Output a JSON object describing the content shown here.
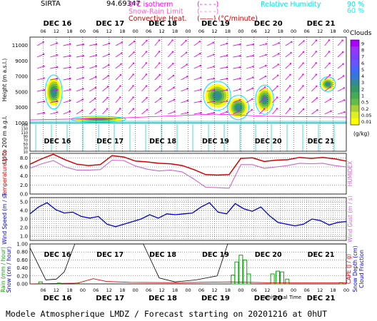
{
  "header": {
    "station": "SIRTA",
    "coords": "94.69347",
    "legend_items": [
      {
        "label": "0°C isotherm",
        "sample": "(- - - -)",
        "color": "#ff00ff"
      },
      {
        "label": "Snow-Rain Limit",
        "sample": "(- - - -)",
        "color": "#ff66cc"
      },
      {
        "label": "Convective Heat.",
        "sample": "(——) (°C/minute)",
        "color": "#d40000"
      }
    ],
    "humidity_label": "Relative Humidity",
    "humidity_levels": [
      "90 %",
      "60 %"
    ],
    "humidity_colors": [
      "#00e5e5",
      "#00ffff"
    ]
  },
  "footer": "Modele Atmospherique LMDZ / Forecast starting on 20201216 at 0hUT",
  "colors": {
    "temperature": "#d40000",
    "humidex": "#cc66cc",
    "wind": "#0000cc",
    "precip": "#00aa00",
    "snow": "#000000",
    "cape": "#dd0000",
    "arrows": "#ff00ff",
    "grid": "#000000"
  },
  "chart_data": [
    {
      "type": "heatmap",
      "name": "clouds",
      "x_day_labels": [
        "DEC 16",
        "DEC 17",
        "DEC 18",
        "DEC 19",
        "DEC 20",
        "DEC 21"
      ],
      "x_hour_labels": [
        "06",
        "12",
        "18",
        "00"
      ],
      "ylabel": "Height (m a.s.l.)",
      "ylabel_low": "Up to 200 m a.g.l.",
      "y_ticks_upper": [
        11000,
        9000,
        7000,
        5000,
        3000,
        1000
      ],
      "y_ticks_lower": [
        150,
        140,
        130,
        120,
        110,
        100,
        90,
        80,
        70,
        60,
        50,
        40,
        30,
        20,
        10
      ],
      "colorbar_title": "Clouds",
      "colorbar_unit": "(g/kg)",
      "colorbar_ticks": [
        "9",
        "8",
        "7",
        "6",
        "5",
        "4",
        "3",
        "2",
        "1",
        "0.5",
        "0.2",
        "0.05",
        "0.01"
      ],
      "colorbar_colors": [
        "#aa00ff",
        "#9933ff",
        "#7a3fff",
        "#6655ff",
        "#4466ff",
        "#3377dd",
        "#338899",
        "#339966",
        "#44aa55",
        "#66bb44",
        "#aad033",
        "#ddee22",
        "#ffff00"
      ],
      "cloud_blobs": [
        {
          "day": 0.45,
          "h": 5000,
          "w": 0.28,
          "hh": 3500
        },
        {
          "day": 1.3,
          "h": 1500,
          "w": 0.9,
          "hh": 600
        },
        {
          "day": 3.55,
          "h": 4500,
          "w": 0.45,
          "hh": 3000
        },
        {
          "day": 3.95,
          "h": 3000,
          "w": 0.35,
          "hh": 2500
        },
        {
          "day": 4.45,
          "h": 4000,
          "w": 0.3,
          "hh": 3000
        },
        {
          "day": 5.65,
          "h": 6000,
          "w": 0.25,
          "hh": 1500
        }
      ]
    },
    {
      "type": "line",
      "name": "temperature",
      "ylabel": "Temperature (°C)",
      "ylabel_right": "HUMIDEX",
      "y_ticks": [
        8.0,
        6.0,
        4.0,
        2.0,
        0.0
      ],
      "ylim": [
        0,
        9
      ],
      "temperature": [
        6.6,
        7.8,
        8.8,
        7.6,
        6.6,
        6.3,
        6.5,
        8.5,
        8.2,
        7.3,
        7.1,
        6.8,
        6.7,
        6.3,
        5.4,
        4.3,
        4.2,
        4.3,
        7.9,
        8.0,
        7.2,
        7.5,
        7.6,
        8.1,
        7.9,
        8.1,
        7.8,
        7.3
      ],
      "humidex": [
        5.7,
        6.7,
        7.4,
        6.0,
        5.3,
        5.3,
        5.4,
        7.5,
        7.4,
        6.2,
        5.5,
        5.1,
        5.3,
        4.9,
        3.3,
        1.5,
        1.4,
        1.3,
        6.5,
        6.5,
        5.7,
        6.0,
        6.3,
        6.8,
        6.7,
        6.8,
        6.3,
        6.0
      ]
    },
    {
      "type": "line",
      "name": "wind",
      "ylabel": "Wind Speed (m / s)",
      "ylabel_right": "Wind Gust (m / s)",
      "y_ticks": [
        5.0,
        4.0,
        3.0,
        2.0,
        1.0
      ],
      "ylim": [
        0.5,
        5.5
      ],
      "wind_speed": [
        3.6,
        4.4,
        4.9,
        4.1,
        3.7,
        3.8,
        3.3,
        3.1,
        3.3,
        2.4,
        2.1,
        2.4,
        2.7,
        3.0,
        3.5,
        3.1,
        3.6,
        3.5,
        3.6,
        3.7,
        4.4,
        4.9,
        3.8,
        3.6,
        4.8,
        4.2,
        3.9,
        4.4,
        3.4,
        2.6,
        2.4,
        2.2,
        2.4,
        3.0,
        2.8,
        2.3,
        2.6,
        2.7
      ],
      "wind_gust": [
        3.7,
        4.5,
        4.9,
        4.2,
        3.8,
        3.9,
        3.4,
        3.2,
        3.4,
        2.6,
        2.2,
        2.5,
        2.8,
        3.1,
        3.6,
        3.2,
        3.7,
        3.6,
        3.7,
        3.8,
        4.5,
        4.9,
        3.9,
        3.7,
        4.9,
        4.3,
        4.0,
        4.5,
        3.5,
        2.7,
        2.5,
        2.3,
        2.5,
        3.1,
        2.9,
        2.4,
        2.7,
        2.8
      ]
    },
    {
      "type": "bar",
      "name": "precipitation",
      "ylabel": "Rain (mm / hour)",
      "ylabel2": "Snow (cm / hour)",
      "ylabel_right": "CAPE (J / g)",
      "ylabel_right2": "Snow Depth (cm)",
      "ylabel_right3": "Cloud Fraction",
      "y_ticks": [
        1.0,
        0.8,
        0.6,
        0.4,
        0.2,
        0.0
      ],
      "ylim": [
        0,
        1
      ],
      "rain_bars": [
        {
          "t": 0.2,
          "v": 0.05
        },
        {
          "t": 0.55,
          "v": 0.02
        },
        {
          "t": 0.9,
          "v": 0.02
        },
        {
          "t": 3.85,
          "v": 0.22
        },
        {
          "t": 3.92,
          "v": 0.55
        },
        {
          "t": 4.0,
          "v": 0.72
        },
        {
          "t": 4.08,
          "v": 0.6
        },
        {
          "t": 4.15,
          "v": 0.25
        },
        {
          "t": 4.6,
          "v": 0.25
        },
        {
          "t": 4.7,
          "v": 0.32
        },
        {
          "t": 4.78,
          "v": 0.3
        },
        {
          "t": 4.88,
          "v": 0.12
        },
        {
          "t": 5.9,
          "v": 0.03
        }
      ],
      "cloud_fraction": [
        {
          "t": 0.0,
          "v": 0.9
        },
        {
          "t": 0.3,
          "v": 0.1
        },
        {
          "t": 0.5,
          "v": 0.12
        },
        {
          "t": 0.65,
          "v": 0.3
        },
        {
          "t": 0.85,
          "v": 1.0
        },
        {
          "t": 2.15,
          "v": 1.0
        },
        {
          "t": 2.45,
          "v": 0.15
        },
        {
          "t": 2.75,
          "v": 0.05
        },
        {
          "t": 3.15,
          "v": 0.1
        },
        {
          "t": 3.55,
          "v": 0.2
        },
        {
          "t": 3.75,
          "v": 1.0
        },
        {
          "t": 6.0,
          "v": 1.0
        }
      ],
      "cape": [
        {
          "t": 0.0,
          "v": 0.0
        },
        {
          "t": 0.9,
          "v": 0.02
        },
        {
          "t": 1.2,
          "v": 0.13
        },
        {
          "t": 1.45,
          "v": 0.06
        },
        {
          "t": 1.9,
          "v": 0.04
        },
        {
          "t": 2.8,
          "v": 0.03
        },
        {
          "t": 3.8,
          "v": 0.05
        },
        {
          "t": 4.5,
          "v": 0.03
        },
        {
          "t": 6.0,
          "v": 0.03
        }
      ]
    }
  ]
}
